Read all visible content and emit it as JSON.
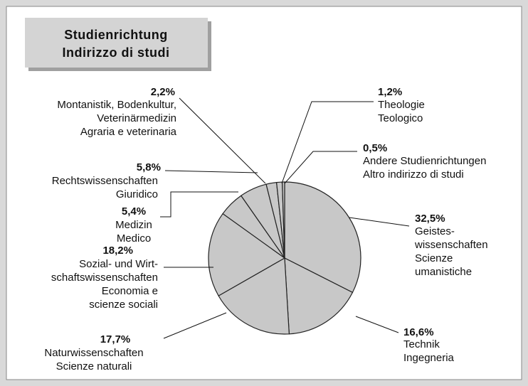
{
  "chart_data": {
    "type": "pie",
    "title": [
      "Studienrichtung",
      "Indirizzo di studi"
    ],
    "categories": [
      [
        "Geistes-",
        "wissenschaften",
        "Scienze",
        "umanistiche"
      ],
      [
        "Technik",
        "Ingegneria"
      ],
      [
        "Naturwissenschaften",
        "Scienze naturali"
      ],
      [
        "Sozial- und Wirt-",
        "schaftswissenschaften",
        "Economia e",
        "scienze sociali"
      ],
      [
        "Medizin",
        "Medico"
      ],
      [
        "Rechtswissenschaften",
        "Giuridico"
      ],
      [
        "Montanistik, Bodenkultur,",
        "Veterinärmedizin",
        "Agraria e veterinaria"
      ],
      [
        "Theologie",
        "Teologico"
      ],
      [
        "Andere Studienrichtungen",
        "Altro indirizzo di studi"
      ]
    ],
    "values": [
      32.5,
      16.6,
      17.7,
      18.2,
      5.4,
      5.8,
      2.2,
      1.2,
      0.5
    ],
    "value_labels": [
      "32,5%",
      "16,6%",
      "17,7%",
      "18,2%",
      "5,4%",
      "5,8%",
      "2,2%",
      "1,2%",
      "0,5%"
    ],
    "color": "#c8c8c8"
  }
}
